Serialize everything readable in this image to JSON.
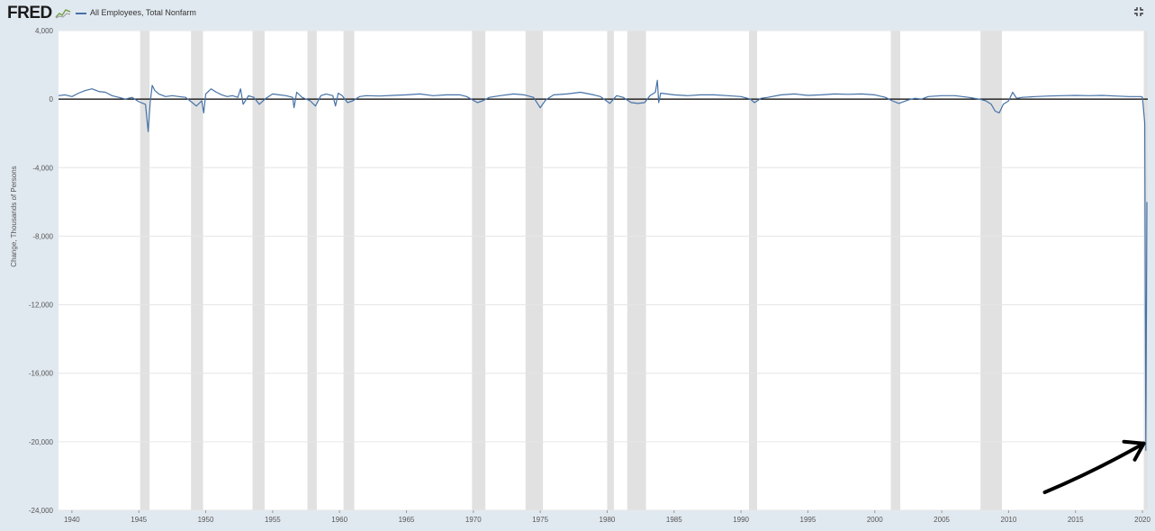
{
  "header": {
    "logo_text": "FRED",
    "legend_label": "All Employees, Total Nonfarm"
  },
  "icons": {
    "logo_mark": "chart-line-icon",
    "expand": "expand-icon"
  },
  "colors": {
    "series": "#4572a7",
    "recession": "#e1e1e1",
    "background": "#e1e9f0",
    "plot_bg": "#ffffff",
    "annotation": "#000000"
  },
  "chart_data": {
    "type": "line",
    "title": "",
    "xlabel": "",
    "ylabel": "Change, Thousands of Persons",
    "xlim": [
      1939.0,
      2020.4
    ],
    "ylim": [
      -24000,
      4000
    ],
    "x_ticks": [
      1940,
      1945,
      1950,
      1955,
      1960,
      1965,
      1970,
      1975,
      1980,
      1985,
      1990,
      1995,
      2000,
      2005,
      2010,
      2015,
      2020
    ],
    "y_ticks": [
      4000,
      0,
      -4000,
      -8000,
      -12000,
      -16000,
      -20000,
      -24000
    ],
    "grid": true,
    "zero_line": true,
    "recessions": [
      [
        1945.1,
        1945.8
      ],
      [
        1948.9,
        1949.8
      ],
      [
        1953.5,
        1954.4
      ],
      [
        1957.6,
        1958.3
      ],
      [
        1960.3,
        1961.1
      ],
      [
        1969.9,
        1970.9
      ],
      [
        1973.9,
        1975.2
      ],
      [
        1980.0,
        1980.5
      ],
      [
        1981.5,
        1982.9
      ],
      [
        1990.6,
        1991.2
      ],
      [
        2001.2,
        2001.9
      ],
      [
        2007.9,
        2009.5
      ],
      [
        2020.1,
        2020.4
      ]
    ],
    "series": [
      {
        "name": "All Employees, Total Nonfarm",
        "x": [
          1939.0,
          1939.5,
          1940.0,
          1940.5,
          1941.0,
          1941.5,
          1942.0,
          1942.5,
          1943.0,
          1943.5,
          1944.0,
          1944.5,
          1945.0,
          1945.5,
          1945.7,
          1945.85,
          1946.0,
          1946.2,
          1946.5,
          1947.0,
          1947.5,
          1948.0,
          1948.5,
          1949.0,
          1949.3,
          1949.7,
          1949.85,
          1950.0,
          1950.4,
          1950.8,
          1951.2,
          1951.6,
          1952.0,
          1952.4,
          1952.6,
          1952.8,
          1953.2,
          1953.6,
          1954.0,
          1954.5,
          1955.0,
          1955.5,
          1956.0,
          1956.5,
          1956.6,
          1956.8,
          1957.2,
          1957.8,
          1958.2,
          1958.6,
          1959.0,
          1959.5,
          1959.7,
          1959.9,
          1960.2,
          1960.6,
          1961.0,
          1961.5,
          1962.0,
          1963.0,
          1964.0,
          1965.0,
          1966.0,
          1967.0,
          1968.0,
          1969.0,
          1969.5,
          1970.3,
          1970.7,
          1971.2,
          1972.0,
          1973.0,
          1973.8,
          1974.5,
          1975.0,
          1975.4,
          1976.0,
          1977.0,
          1978.0,
          1979.0,
          1979.5,
          1980.2,
          1980.7,
          1981.2,
          1981.8,
          1982.3,
          1982.8,
          1983.2,
          1983.6,
          1983.75,
          1983.85,
          1984.0,
          1985.0,
          1986.0,
          1987.0,
          1988.0,
          1989.0,
          1990.0,
          1990.7,
          1991.0,
          1991.5,
          1992.0,
          1993.0,
          1994.0,
          1995.0,
          1996.0,
          1997.0,
          1998.0,
          1999.0,
          2000.0,
          2000.8,
          2001.3,
          2001.8,
          2002.5,
          2003.0,
          2003.5,
          2004.0,
          2005.0,
          2006.0,
          2007.0,
          2007.8,
          2008.3,
          2008.7,
          2009.0,
          2009.3,
          2009.6,
          2010.0,
          2010.3,
          2010.6,
          2011.0,
          2012.0,
          2013.0,
          2014.0,
          2015.0,
          2016.0,
          2017.0,
          2018.0,
          2019.0,
          2019.9,
          2020.0,
          2020.17,
          2020.25,
          2020.33
        ],
        "values": [
          200,
          250,
          150,
          350,
          500,
          600,
          450,
          400,
          200,
          100,
          0,
          100,
          -150,
          -300,
          -1900,
          -200,
          800,
          500,
          300,
          150,
          200,
          150,
          100,
          -200,
          -400,
          -100,
          -800,
          300,
          600,
          400,
          250,
          150,
          200,
          100,
          600,
          -300,
          200,
          100,
          -300,
          50,
          300,
          250,
          200,
          100,
          -500,
          400,
          100,
          -100,
          -400,
          200,
          300,
          200,
          -400,
          350,
          200,
          -200,
          -100,
          150,
          200,
          180,
          220,
          250,
          300,
          200,
          250,
          250,
          150,
          -200,
          -100,
          100,
          200,
          300,
          250,
          100,
          -500,
          -50,
          250,
          300,
          400,
          250,
          150,
          -250,
          200,
          100,
          -200,
          -250,
          -200,
          200,
          400,
          1100,
          -200,
          350,
          250,
          200,
          250,
          250,
          200,
          150,
          0,
          -200,
          50,
          100,
          250,
          300,
          220,
          250,
          300,
          280,
          300,
          250,
          100,
          -100,
          -250,
          -50,
          50,
          0,
          150,
          200,
          200,
          100,
          0,
          -100,
          -300,
          -700,
          -800,
          -300,
          -100,
          400,
          50,
          100,
          150,
          180,
          200,
          220,
          200,
          220,
          180,
          150,
          150,
          100,
          -1400,
          -20500,
          -6000
        ]
      }
    ]
  },
  "annotation": {
    "arrow_color": "#000000",
    "arrow_from": [
      2012.7,
      -22950
    ],
    "arrow_to": [
      2020.1,
      -20100
    ]
  }
}
